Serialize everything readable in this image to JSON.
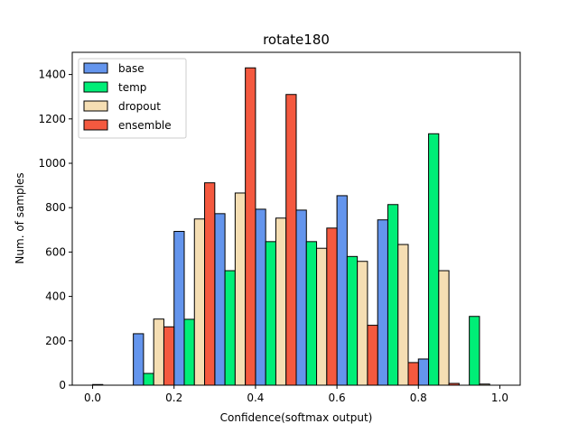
{
  "chart_data": {
    "type": "bar",
    "title": "rotate180",
    "xlabel": "Confidence(softmax output)",
    "ylabel": "Num. of samples",
    "xlim": [
      -0.05,
      1.05
    ],
    "ylim": [
      0,
      1500
    ],
    "xticks": [
      "0.0",
      "0.2",
      "0.4",
      "0.6",
      "0.8",
      "1.0"
    ],
    "yticks": [
      "0",
      "200",
      "400",
      "600",
      "800",
      "1000",
      "1200",
      "1400"
    ],
    "grid": false,
    "legend_position": "top-left",
    "bin_edges": [
      0.0,
      0.1,
      0.2,
      0.3,
      0.4,
      0.5,
      0.6,
      0.7,
      0.8,
      0.9,
      1.0
    ],
    "series": [
      {
        "name": "base",
        "color": "#6495ed",
        "values": [
          3,
          232,
          693,
          773,
          793,
          789,
          854,
          745,
          118,
          0
        ]
      },
      {
        "name": "temp",
        "color": "#00ee77",
        "values": [
          0,
          53,
          297,
          516,
          647,
          647,
          580,
          814,
          1133,
          310
        ]
      },
      {
        "name": "dropout",
        "color": "#f5deb3",
        "values": [
          0,
          298,
          749,
          866,
          753,
          617,
          558,
          634,
          516,
          5
        ]
      },
      {
        "name": "ensemble",
        "color": "#f4593f",
        "values": [
          0,
          263,
          912,
          1430,
          1310,
          708,
          270,
          102,
          8,
          0
        ]
      }
    ]
  }
}
